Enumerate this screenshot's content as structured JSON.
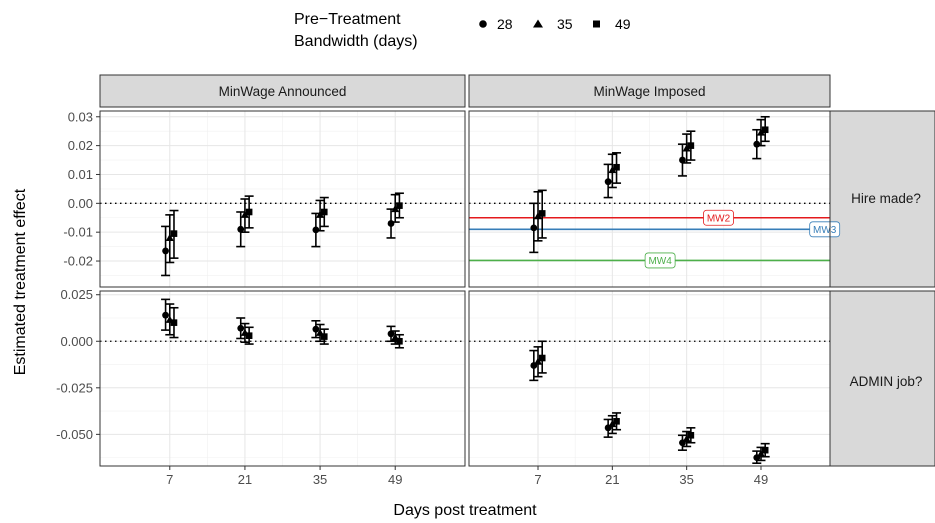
{
  "chart_data": {
    "type": "scatter",
    "xlabel": "Days post treatment",
    "ylabel": "Estimated treatment effect",
    "x_ticks": [
      7,
      21,
      35,
      49
    ],
    "legend": {
      "title_line1": "Pre−Treatment",
      "title_line2": "Bandwidth (days)",
      "placement": "top",
      "items": [
        {
          "label": "28",
          "shape": "circle"
        },
        {
          "label": "35",
          "shape": "triangle"
        },
        {
          "label": "49",
          "shape": "square"
        }
      ]
    },
    "columns": [
      "MinWage Announced",
      "MinWage Imposed"
    ],
    "rows": [
      "Hire made?",
      "ADMIN job?"
    ],
    "row_ylims": [
      [
        -0.029,
        0.032
      ],
      [
        -0.067,
        0.027
      ]
    ],
    "row_yticks": [
      [
        "0.03",
        "0.02",
        "0.01",
        "0.00",
        "-0.01",
        "-0.02"
      ],
      [
        "0.025",
        "0.000",
        "-0.025",
        "-0.050"
      ]
    ],
    "row_ytick_values": [
      [
        0.03,
        0.02,
        0.01,
        0.0,
        -0.01,
        -0.02
      ],
      [
        0.025,
        0.0,
        -0.025,
        -0.05
      ]
    ],
    "dotted_zero_line": true,
    "grid": true,
    "panels": [
      {
        "row": 0,
        "col": 0,
        "points": [
          {
            "day": 7,
            "bandwidth": 28,
            "est": -0.0165,
            "lo": -0.025,
            "hi": -0.008
          },
          {
            "day": 7,
            "bandwidth": 35,
            "est": -0.012,
            "lo": -0.0205,
            "hi": -0.004
          },
          {
            "day": 7,
            "bandwidth": 49,
            "est": -0.0105,
            "lo": -0.019,
            "hi": -0.0025
          },
          {
            "day": 21,
            "bandwidth": 28,
            "est": -0.009,
            "lo": -0.015,
            "hi": -0.003
          },
          {
            "day": 21,
            "bandwidth": 35,
            "est": -0.004,
            "lo": -0.01,
            "hi": 0.0015
          },
          {
            "day": 21,
            "bandwidth": 49,
            "est": -0.003,
            "lo": -0.0085,
            "hi": 0.0025
          },
          {
            "day": 35,
            "bandwidth": 28,
            "est": -0.0092,
            "lo": -0.015,
            "hi": -0.0035
          },
          {
            "day": 35,
            "bandwidth": 35,
            "est": -0.004,
            "lo": -0.0095,
            "hi": 0.001
          },
          {
            "day": 35,
            "bandwidth": 49,
            "est": -0.003,
            "lo": -0.008,
            "hi": 0.002
          },
          {
            "day": 49,
            "bandwidth": 28,
            "est": -0.007,
            "lo": -0.012,
            "hi": -0.002
          },
          {
            "day": 49,
            "bandwidth": 35,
            "est": -0.002,
            "lo": -0.0065,
            "hi": 0.003
          },
          {
            "day": 49,
            "bandwidth": 49,
            "est": -0.0008,
            "lo": -0.005,
            "hi": 0.0035
          }
        ],
        "ref_lines": []
      },
      {
        "row": 0,
        "col": 1,
        "points": [
          {
            "day": 7,
            "bandwidth": 28,
            "est": -0.0085,
            "lo": -0.017,
            "hi": 0.0
          },
          {
            "day": 7,
            "bandwidth": 35,
            "est": -0.0045,
            "lo": -0.013,
            "hi": 0.004
          },
          {
            "day": 7,
            "bandwidth": 49,
            "est": -0.0035,
            "lo": -0.012,
            "hi": 0.0045
          },
          {
            "day": 21,
            "bandwidth": 28,
            "est": 0.0075,
            "lo": 0.002,
            "hi": 0.0135
          },
          {
            "day": 21,
            "bandwidth": 35,
            "est": 0.0115,
            "lo": 0.0055,
            "hi": 0.017
          },
          {
            "day": 21,
            "bandwidth": 49,
            "est": 0.0125,
            "lo": 0.007,
            "hi": 0.0175
          },
          {
            "day": 35,
            "bandwidth": 28,
            "est": 0.015,
            "lo": 0.0095,
            "hi": 0.0205
          },
          {
            "day": 35,
            "bandwidth": 35,
            "est": 0.019,
            "lo": 0.014,
            "hi": 0.024
          },
          {
            "day": 35,
            "bandwidth": 49,
            "est": 0.02,
            "lo": 0.015,
            "hi": 0.025
          },
          {
            "day": 49,
            "bandwidth": 28,
            "est": 0.0205,
            "lo": 0.0155,
            "hi": 0.0255
          },
          {
            "day": 49,
            "bandwidth": 35,
            "est": 0.0245,
            "lo": 0.02,
            "hi": 0.029
          },
          {
            "day": 49,
            "bandwidth": 49,
            "est": 0.0255,
            "lo": 0.0215,
            "hi": 0.03
          }
        ],
        "ref_lines": [
          {
            "label": "MW2",
            "value": -0.005,
            "color": "#e41a1c",
            "label_day": 41
          },
          {
            "label": "MW3",
            "value": -0.009,
            "color": "#377eb8",
            "label_day": 61
          },
          {
            "label": "MW4",
            "value": -0.0198,
            "color": "#4daf4a",
            "label_day": 30
          }
        ]
      },
      {
        "row": 1,
        "col": 0,
        "points": [
          {
            "day": 7,
            "bandwidth": 28,
            "est": 0.014,
            "lo": 0.006,
            "hi": 0.0225
          },
          {
            "day": 7,
            "bandwidth": 35,
            "est": 0.0115,
            "lo": 0.0035,
            "hi": 0.02
          },
          {
            "day": 7,
            "bandwidth": 49,
            "est": 0.01,
            "lo": 0.002,
            "hi": 0.018
          },
          {
            "day": 21,
            "bandwidth": 28,
            "est": 0.007,
            "lo": 0.0015,
            "hi": 0.0125
          },
          {
            "day": 21,
            "bandwidth": 35,
            "est": 0.0045,
            "lo": -0.0005,
            "hi": 0.0095
          },
          {
            "day": 21,
            "bandwidth": 49,
            "est": 0.003,
            "lo": -0.0015,
            "hi": 0.0075
          },
          {
            "day": 35,
            "bandwidth": 28,
            "est": 0.0065,
            "lo": 0.002,
            "hi": 0.011
          },
          {
            "day": 35,
            "bandwidth": 35,
            "est": 0.0045,
            "lo": 0.0,
            "hi": 0.009
          },
          {
            "day": 35,
            "bandwidth": 49,
            "est": 0.0025,
            "lo": -0.0015,
            "hi": 0.0065
          },
          {
            "day": 49,
            "bandwidth": 28,
            "est": 0.004,
            "lo": 0.0,
            "hi": 0.008
          },
          {
            "day": 49,
            "bandwidth": 35,
            "est": 0.002,
            "lo": -0.0015,
            "hi": 0.0055
          },
          {
            "day": 49,
            "bandwidth": 49,
            "est": 0.0,
            "lo": -0.0035,
            "hi": 0.0035
          }
        ],
        "ref_lines": []
      },
      {
        "row": 1,
        "col": 1,
        "points": [
          {
            "day": 7,
            "bandwidth": 28,
            "est": -0.013,
            "lo": -0.021,
            "hi": -0.005
          },
          {
            "day": 7,
            "bandwidth": 35,
            "est": -0.011,
            "lo": -0.019,
            "hi": -0.003
          },
          {
            "day": 7,
            "bandwidth": 49,
            "est": -0.009,
            "lo": -0.017,
            "hi": 0.0
          },
          {
            "day": 21,
            "bandwidth": 28,
            "est": -0.0465,
            "lo": -0.0515,
            "hi": -0.042
          },
          {
            "day": 21,
            "bandwidth": 35,
            "est": -0.0445,
            "lo": -0.0495,
            "hi": -0.04
          },
          {
            "day": 21,
            "bandwidth": 49,
            "est": -0.043,
            "lo": -0.0475,
            "hi": -0.0385
          },
          {
            "day": 35,
            "bandwidth": 28,
            "est": -0.0545,
            "lo": -0.0585,
            "hi": -0.0505
          },
          {
            "day": 35,
            "bandwidth": 35,
            "est": -0.0525,
            "lo": -0.0565,
            "hi": -0.0485
          },
          {
            "day": 35,
            "bandwidth": 49,
            "est": -0.0505,
            "lo": -0.0545,
            "hi": -0.0465
          },
          {
            "day": 49,
            "bandwidth": 28,
            "est": -0.0625,
            "lo": -0.0655,
            "hi": -0.059
          },
          {
            "day": 49,
            "bandwidth": 35,
            "est": -0.0605,
            "lo": -0.064,
            "hi": -0.057
          },
          {
            "day": 49,
            "bandwidth": 49,
            "est": -0.0585,
            "lo": -0.062,
            "hi": -0.055
          }
        ],
        "ref_lines": []
      }
    ]
  }
}
